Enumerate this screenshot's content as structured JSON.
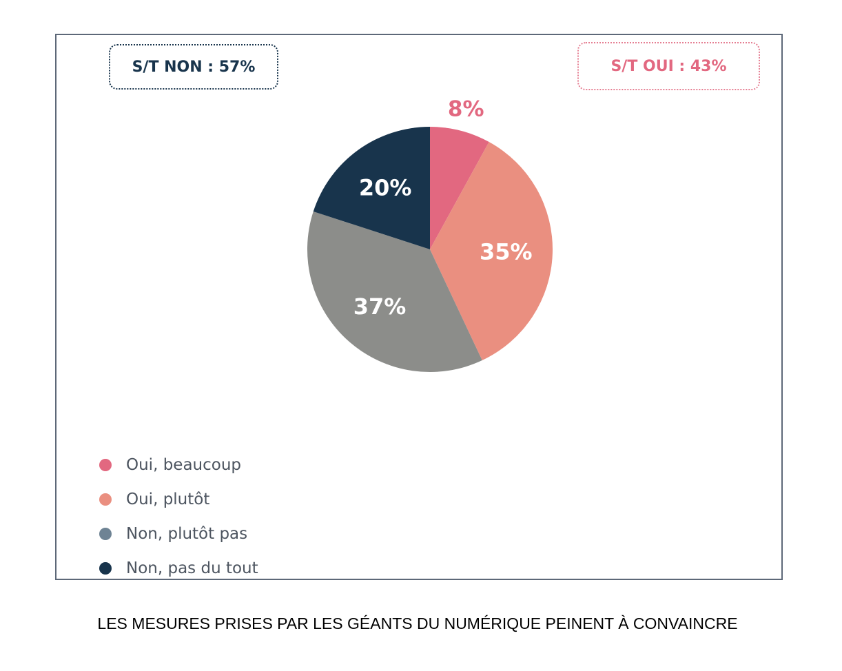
{
  "chart_data": {
    "type": "pie",
    "categories": [
      "Oui, beaucoup",
      "Oui, plutôt",
      "Non, plutôt pas",
      "Non, pas du tout"
    ],
    "values": [
      8,
      35,
      37,
      20
    ],
    "labels": [
      "8%",
      "35%",
      "37%",
      "20%"
    ],
    "colors": [
      "#e26880",
      "#ea8f80",
      "#8c8d8a",
      "#18344c"
    ],
    "legend_colors": [
      "#e26880",
      "#ea8f80",
      "#6e8394",
      "#18344c"
    ],
    "label_colors": [
      "#e26880",
      "#ffffff",
      "#ffffff",
      "#ffffff"
    ],
    "legend_position": "bottom-left",
    "start": "top, clockwise",
    "summaries": {
      "non": "S/T NON : 57%",
      "oui": "S/T OUI : 43%"
    },
    "caption": "LES MESURES PRISES PAR LES GÉANTS DU NUMÉRIQUE PEINENT À CONVAINCRE"
  }
}
